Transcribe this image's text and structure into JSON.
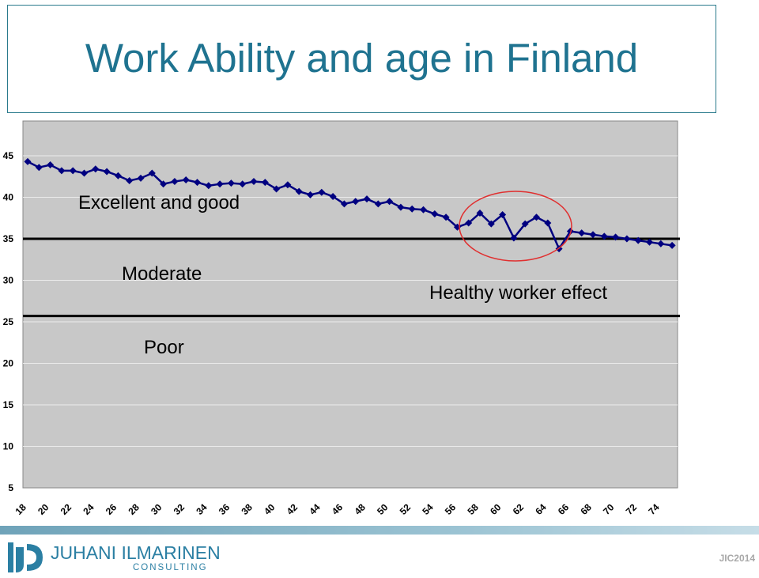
{
  "title": "Work Ability and age in Finland",
  "chart_data": {
    "type": "line",
    "title": "Work Ability and age in Finland",
    "xlabel": "",
    "ylabel": "",
    "x_range": [
      18,
      75
    ],
    "ylim": [
      5,
      45
    ],
    "y_ticks": [
      45,
      40,
      35,
      30,
      25,
      20,
      15,
      10,
      5
    ],
    "x_ticks": [
      18,
      20,
      22,
      24,
      26,
      28,
      30,
      32,
      34,
      36,
      38,
      40,
      42,
      44,
      46,
      48,
      50,
      52,
      54,
      56,
      58,
      60,
      62,
      64,
      66,
      68,
      70,
      72,
      74
    ],
    "grid": true,
    "series": [
      {
        "color": "#000080",
        "marker": "diamond",
        "x": [
          18,
          19,
          20,
          21,
          22,
          23,
          24,
          25,
          26,
          27,
          28,
          29,
          30,
          31,
          32,
          33,
          34,
          35,
          36,
          37,
          38,
          39,
          40,
          41,
          42,
          43,
          44,
          45,
          46,
          47,
          48,
          49,
          50,
          51,
          52,
          53,
          54,
          55,
          56,
          57,
          58,
          59,
          60,
          61,
          62,
          63,
          64,
          65,
          66,
          67,
          68,
          69,
          70,
          71,
          72,
          73,
          74,
          75
        ],
        "values": [
          44.3,
          43.6,
          43.9,
          43.2,
          43.2,
          42.9,
          43.4,
          43.1,
          42.6,
          42.0,
          42.3,
          42.9,
          41.6,
          41.9,
          42.1,
          41.8,
          41.4,
          41.6,
          41.7,
          41.6,
          41.9,
          41.8,
          41.0,
          41.5,
          40.7,
          40.3,
          40.6,
          40.1,
          39.2,
          39.5,
          39.8,
          39.2,
          39.5,
          38.8,
          38.6,
          38.5,
          38.0,
          37.6,
          36.4,
          36.9,
          38.1,
          36.8,
          37.9,
          35.1,
          36.8,
          37.6,
          36.9,
          33.8,
          35.9,
          35.7,
          35.5,
          35.3,
          35.2,
          35.0,
          34.8,
          34.6,
          34.4,
          34.2
        ]
      }
    ],
    "reference_lines": [
      35,
      25.7
    ],
    "zone_labels": {
      "excellent": "Excellent and good",
      "moderate": "Moderate",
      "poor": "Poor"
    },
    "annotation": "Healthy worker effect"
  },
  "footer": {
    "logo_name_first": "JUHANI",
    "logo_name_last": "ILMARINEN",
    "logo_sub": "CONSULTING",
    "credit": "JIC2014"
  },
  "colors": {
    "title": "#1f7390",
    "plot_bg": "#c8c8c8",
    "line": "#000080",
    "circle": "#e03030",
    "logo": "#2b7fa3"
  }
}
